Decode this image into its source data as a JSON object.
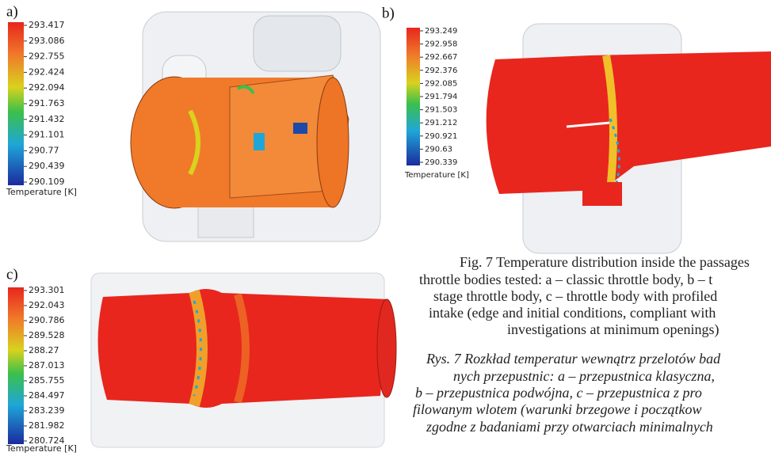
{
  "panels": [
    {
      "label": "a)",
      "colorbar": {
        "ticks": [
          "293.417",
          "293.086",
          "292.755",
          "292.424",
          "292.094",
          "291.763",
          "291.432",
          "291.101",
          "290.77",
          "290.439",
          "290.109"
        ],
        "title": "Temperature [K]"
      }
    },
    {
      "label": "b)",
      "colorbar": {
        "ticks": [
          "293.249",
          "292.958",
          "292.667",
          "292.376",
          "292.085",
          "291.794",
          "291.503",
          "291.212",
          "290.921",
          "290.63",
          "290.339"
        ],
        "title": "Temperature [K]"
      }
    },
    {
      "label": "c)",
      "colorbar": {
        "ticks": [
          "293.301",
          "292.043",
          "290.786",
          "289.528",
          "288.27",
          "287.013",
          "285.755",
          "284.497",
          "283.239",
          "281.982",
          "280.724"
        ],
        "title": "Temperature [K]"
      }
    }
  ],
  "caption": {
    "english": [
      "Fig. 7 Temperature distribution inside the passages",
      "throttle bodies tested: a – classic throttle body, b – t",
      "stage throttle body, c – throttle body with profiled",
      "intake (edge and initial conditions, compliant with",
      "investigations at minimum openings)"
    ],
    "polish": [
      "Rys. 7 Rozkład temperatur wewnątrz przelotów bad",
      "nych przepustnic: a – przepustnica klasyczna,",
      "b – przepustnica podwójna, c – przepustnica z pro",
      "filowanym wlotem (warunki brzegowe i początkow",
      "zgodne z badaniami przy otwarciach minimalnych"
    ]
  }
}
